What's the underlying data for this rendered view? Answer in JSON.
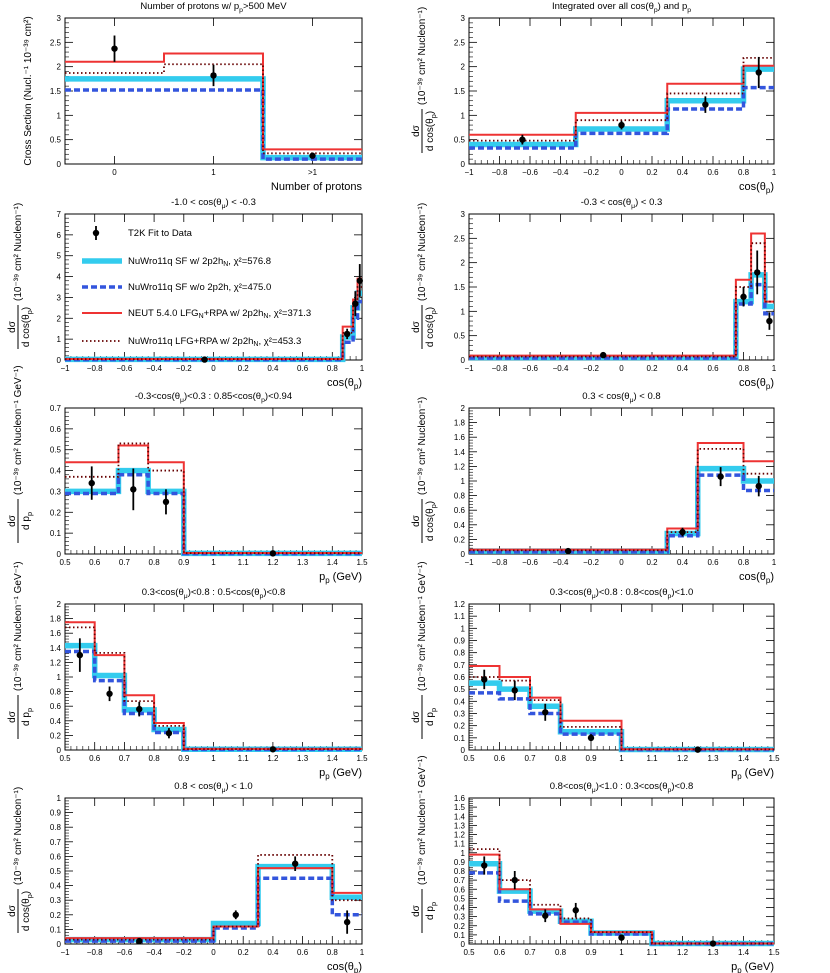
{
  "colors": {
    "sf": "#33ccee",
    "nosf": "#3355dd",
    "neut": "#ee3333",
    "lfg": "#660000",
    "data": "#000000"
  },
  "legend": {
    "data": "T2K Fit to Data",
    "sf": "NuWro11q SF w/ 2p2h",
    "sf_sub": "N",
    "sf_chi": ", χ²=576.8",
    "nosf": "NuWro11q SF w/o 2p2h, χ²=475.0",
    "neut": "NEUT 5.4.0 LFG",
    "neut_sub1": "N",
    "neut_mid": "+RPA  w/ 2p2h",
    "neut_sub2": "N",
    "neut_chi": ", χ²=371.3",
    "lfg": "NuWro11q LFG+RPA w/ 2p2h",
    "lfg_sub": "N",
    "lfg_chi": ", χ²=453.3"
  },
  "chart_data": [
    {
      "type": "step",
      "title": "Number of protons w/ p_p>500 MeV",
      "xlabel": "Number of protons",
      "ylabel": "Cross Section (Nucl.⁻¹ 10⁻³⁹ cm²)",
      "ylabel_kind": "plain",
      "xlim": [
        -0.5,
        2.5
      ],
      "ylim": [
        0,
        3
      ],
      "yticks": [
        0,
        0.5,
        1,
        1.5,
        2,
        2.5,
        3
      ],
      "xticks": [
        0,
        1,
        2
      ],
      "xticklabels": [
        "0",
        "1",
        ">1"
      ],
      "xticklabel_style": "small",
      "edges": [
        -0.5,
        0.5,
        1.5,
        2.5
      ],
      "series": {
        "sf": [
          1.75,
          1.75,
          0.13
        ],
        "nosf": [
          1.52,
          1.52,
          0.1
        ],
        "neut": [
          2.1,
          2.27,
          0.3
        ],
        "lfg": [
          1.87,
          2.05,
          0.22
        ]
      },
      "data": {
        "x": [
          0,
          1,
          2
        ],
        "y": [
          2.37,
          1.82,
          0.17
        ],
        "err": [
          0.27,
          0.22,
          0.05
        ]
      }
    },
    {
      "type": "step",
      "title": "Integrated over all cos(θ_p) and p_p",
      "xlabel": "cos(θ_p)",
      "ylabel": "(10⁻³⁹ cm² Nucleon⁻¹)",
      "ylabel_kind": "frac_cos",
      "xlim": [
        -1,
        1
      ],
      "ylim": [
        0,
        3
      ],
      "yticks": [
        0,
        0.5,
        1,
        1.5,
        2,
        2.5,
        3
      ],
      "xticks": [
        -1,
        -0.8,
        -0.6,
        -0.4,
        -0.2,
        0,
        0.2,
        0.4,
        0.6,
        0.8,
        1
      ],
      "edges": [
        -1,
        -0.3,
        0.3,
        0.8,
        1
      ],
      "series": {
        "sf": [
          0.4,
          0.72,
          1.3,
          1.95
        ],
        "nosf": [
          0.33,
          0.63,
          1.13,
          1.57
        ],
        "neut": [
          0.6,
          1.05,
          1.65,
          2.02
        ],
        "lfg": [
          0.48,
          0.9,
          1.45,
          2.18
        ]
      },
      "data": {
        "x": [
          -0.65,
          0,
          0.55,
          0.9
        ],
        "y": [
          0.5,
          0.8,
          1.22,
          1.88
        ],
        "err": [
          0.1,
          0.09,
          0.17,
          0.32
        ]
      }
    },
    {
      "type": "step",
      "title": "-1.0 < cos(θ_μ) < -0.3",
      "xlabel": "cos(θ_p)",
      "ylabel": "(10⁻³⁹ cm² Nucleon⁻¹)",
      "ylabel_kind": "frac_cos",
      "xlim": [
        -1,
        1
      ],
      "ylim": [
        0,
        7
      ],
      "yticks": [
        0,
        1,
        2,
        3,
        4,
        5,
        6,
        7
      ],
      "xticks": [
        -1,
        -0.8,
        -0.6,
        -0.4,
        -0.2,
        0,
        0.2,
        0.4,
        0.6,
        0.8,
        1
      ],
      "edges": [
        -1,
        0.87,
        0.94,
        0.97,
        1
      ],
      "series": {
        "sf": [
          0.03,
          1.1,
          2.5,
          3.2
        ],
        "nosf": [
          0.02,
          0.85,
          2.0,
          2.8
        ],
        "neut": [
          0.05,
          1.6,
          2.9,
          3.9
        ],
        "lfg": [
          0.04,
          1.3,
          2.7,
          3.5
        ]
      },
      "data": {
        "x": [
          -0.06,
          0.9,
          0.955,
          0.985
        ],
        "y": [
          0.02,
          1.25,
          2.7,
          3.8
        ],
        "err": [
          0.03,
          0.25,
          0.6,
          0.8
        ]
      }
    },
    {
      "type": "step",
      "title": "-0.3 < cos(θ_μ) < 0.3",
      "xlabel": "cos(θ_p)",
      "ylabel": "(10⁻³⁹ cm² Nucleon⁻¹)",
      "ylabel_kind": "frac_cos",
      "xlim": [
        -1,
        1
      ],
      "ylim": [
        0,
        3
      ],
      "yticks": [
        0,
        0.5,
        1,
        1.5,
        2,
        2.5,
        3
      ],
      "xticks": [
        -1,
        -0.8,
        -0.6,
        -0.4,
        -0.2,
        0,
        0.2,
        0.4,
        0.6,
        0.8,
        1
      ],
      "edges": [
        -1,
        0.75,
        0.85,
        0.94,
        1
      ],
      "series": {
        "sf": [
          0.05,
          1.2,
          1.75,
          1.1
        ],
        "nosf": [
          0.04,
          1.15,
          1.55,
          0.95
        ],
        "neut": [
          0.09,
          1.65,
          2.6,
          1.2
        ],
        "lfg": [
          0.07,
          1.5,
          2.4,
          1.2
        ]
      },
      "data": {
        "x": [
          -0.12,
          0.8,
          0.89,
          0.97
        ],
        "y": [
          0.1,
          1.3,
          1.8,
          0.8
        ],
        "err": [
          0.03,
          0.2,
          0.45,
          0.18
        ]
      }
    },
    {
      "type": "step",
      "title": "-0.3<cos(θ_μ)<0.3 : 0.85<cos(θ_p)<0.94",
      "xlabel": "p_p (GeV)",
      "ylabel": "(10⁻³⁹ cm² Nucleon⁻¹ GeV⁻¹)",
      "ylabel_kind": "frac_p",
      "xlim": [
        0.5,
        1.5
      ],
      "ylim": [
        0,
        0.7
      ],
      "yticks": [
        0,
        0.1,
        0.2,
        0.3,
        0.4,
        0.5,
        0.6,
        0.7
      ],
      "xticks": [
        0.5,
        0.6,
        0.7,
        0.8,
        0.9,
        1,
        1.1,
        1.2,
        1.3,
        1.4,
        1.5
      ],
      "edges": [
        0.5,
        0.68,
        0.78,
        0.9,
        1.5
      ],
      "series": {
        "sf": [
          0.3,
          0.4,
          0.3,
          0.003
        ],
        "nosf": [
          0.29,
          0.38,
          0.29,
          0.002
        ],
        "neut": [
          0.44,
          0.52,
          0.44,
          0.005
        ],
        "lfg": [
          0.37,
          0.53,
          0.4,
          0.004
        ]
      },
      "data": {
        "x": [
          0.59,
          0.73,
          0.84,
          1.2
        ],
        "y": [
          0.34,
          0.31,
          0.25,
          0.003
        ],
        "err": [
          0.08,
          0.1,
          0.06,
          0.005
        ]
      }
    },
    {
      "type": "step",
      "title": "0.3 < cos(θ_μ) < 0.8",
      "xlabel": "cos(θ_p)",
      "ylabel": "(10⁻³⁹ cm² Nucleon⁻¹)",
      "ylabel_kind": "frac_cos",
      "xlim": [
        -1,
        1
      ],
      "ylim": [
        0,
        2
      ],
      "yticks": [
        0,
        0.2,
        0.4,
        0.6,
        0.8,
        1,
        1.2,
        1.4,
        1.6,
        1.8,
        2
      ],
      "xticks": [
        -1,
        -0.8,
        -0.6,
        -0.4,
        -0.2,
        0,
        0.2,
        0.4,
        0.6,
        0.8,
        1
      ],
      "edges": [
        -1,
        0.3,
        0.5,
        0.8,
        1
      ],
      "series": {
        "sf": [
          0.04,
          0.28,
          1.17,
          1.0
        ],
        "nosf": [
          0.03,
          0.25,
          1.08,
          0.87
        ],
        "neut": [
          0.06,
          0.35,
          1.52,
          1.27
        ],
        "lfg": [
          0.05,
          0.3,
          1.44,
          1.1
        ]
      },
      "data": {
        "x": [
          -0.35,
          0.4,
          0.65,
          0.9
        ],
        "y": [
          0.04,
          0.3,
          1.06,
          0.93
        ],
        "err": [
          0.01,
          0.06,
          0.13,
          0.14
        ]
      }
    },
    {
      "type": "step",
      "title": "0.3<cos(θ_μ)<0.8 : 0.5<cos(θ_p)<0.8",
      "xlabel": "p_p (GeV)",
      "ylabel": "(10⁻³⁹ cm² Nucleon⁻¹ GeV⁻¹)",
      "ylabel_kind": "frac_p",
      "xlim": [
        0.5,
        1.5
      ],
      "ylim": [
        0,
        2
      ],
      "yticks": [
        0,
        0.2,
        0.4,
        0.6,
        0.8,
        1,
        1.2,
        1.4,
        1.6,
        1.8,
        2
      ],
      "xticks": [
        0.5,
        0.6,
        0.7,
        0.8,
        0.9,
        1,
        1.1,
        1.2,
        1.3,
        1.4,
        1.5
      ],
      "edges": [
        0.5,
        0.6,
        0.7,
        0.8,
        0.9,
        1.5
      ],
      "series": {
        "sf": [
          1.43,
          1.02,
          0.55,
          0.28,
          0.01
        ],
        "nosf": [
          1.35,
          0.95,
          0.5,
          0.24,
          0.008
        ],
        "neut": [
          1.75,
          1.3,
          0.75,
          0.37,
          0.015
        ],
        "lfg": [
          1.68,
          1.33,
          0.67,
          0.33,
          0.012
        ]
      },
      "data": {
        "x": [
          0.55,
          0.65,
          0.75,
          0.85,
          1.2
        ],
        "y": [
          1.3,
          0.77,
          0.56,
          0.23,
          0.01
        ],
        "err": [
          0.23,
          0.1,
          0.1,
          0.07,
          0.01
        ]
      }
    },
    {
      "type": "step",
      "title": "0.3<cos(θ_μ)<0.8 : 0.8<cos(θ_p)<1.0",
      "xlabel": "p_p (GeV)",
      "ylabel": "(10⁻³⁹ cm² Nucleon⁻¹ GeV⁻¹)",
      "ylabel_kind": "frac_p",
      "xlim": [
        0.5,
        1.5
      ],
      "ylim": [
        0,
        1.2
      ],
      "yticks": [
        0,
        0.1,
        0.2,
        0.3,
        0.4,
        0.5,
        0.6,
        0.7,
        0.8,
        0.9,
        1,
        1.1,
        1.2
      ],
      "xticks": [
        0.5,
        0.6,
        0.7,
        0.8,
        0.9,
        1,
        1.1,
        1.2,
        1.3,
        1.4,
        1.5
      ],
      "edges": [
        0.5,
        0.6,
        0.7,
        0.8,
        1.0,
        1.5
      ],
      "series": {
        "sf": [
          0.55,
          0.5,
          0.36,
          0.15,
          0.004
        ],
        "nosf": [
          0.47,
          0.42,
          0.3,
          0.13,
          0.003
        ],
        "neut": [
          0.69,
          0.6,
          0.43,
          0.24,
          0.006
        ],
        "lfg": [
          0.6,
          0.57,
          0.41,
          0.19,
          0.005
        ]
      },
      "data": {
        "x": [
          0.55,
          0.65,
          0.75,
          0.9,
          1.25
        ],
        "y": [
          0.58,
          0.49,
          0.31,
          0.1,
          0.003
        ],
        "err": [
          0.08,
          0.08,
          0.07,
          0.03,
          0.005
        ]
      }
    },
    {
      "type": "step",
      "title": "0.8 < cos(θ_μ) < 1.0",
      "xlabel": "cos(θ_p)",
      "ylabel": "(10⁻³⁹ cm² Nucleon⁻¹)",
      "ylabel_kind": "frac_cos",
      "xlim": [
        -1,
        1
      ],
      "ylim": [
        0,
        1
      ],
      "yticks": [
        0,
        0.1,
        0.2,
        0.3,
        0.4,
        0.5,
        0.6,
        0.7,
        0.8,
        0.9,
        1
      ],
      "xticks": [
        -1,
        -0.8,
        -0.6,
        -0.4,
        -0.2,
        0,
        0.2,
        0.4,
        0.6,
        0.8,
        1
      ],
      "edges": [
        -1,
        0,
        0.3,
        0.8,
        1
      ],
      "series": {
        "sf": [
          0.03,
          0.14,
          0.53,
          0.32
        ],
        "nosf": [
          0.02,
          0.11,
          0.45,
          0.2
        ],
        "neut": [
          0.04,
          0.12,
          0.52,
          0.35
        ],
        "lfg": [
          0.03,
          0.12,
          0.61,
          0.3
        ]
      },
      "data": {
        "x": [
          -0.5,
          0.15,
          0.55,
          0.9
        ],
        "y": [
          0.02,
          0.2,
          0.55,
          0.15
        ],
        "err": [
          0.01,
          0.03,
          0.05,
          0.08
        ]
      }
    },
    {
      "type": "step",
      "title": "0.8<cos(θ_μ)<1.0 : 0.3<cos(θ_p)<0.8",
      "xlabel": "p_p (GeV)",
      "ylabel": "(10⁻³⁹ cm² Nucleon⁻¹ GeV⁻¹)",
      "ylabel_kind": "frac_p",
      "xlim": [
        0.5,
        1.5
      ],
      "ylim": [
        0,
        1.6
      ],
      "yticks": [
        0,
        0.1,
        0.2,
        0.3,
        0.4,
        0.5,
        0.6,
        0.7,
        0.8,
        0.9,
        1,
        1.1,
        1.2,
        1.3,
        1.4,
        1.5,
        1.6
      ],
      "xticks": [
        0.5,
        0.6,
        0.7,
        0.8,
        0.9,
        1,
        1.1,
        1.2,
        1.3,
        1.4,
        1.5
      ],
      "edges": [
        0.5,
        0.6,
        0.7,
        0.8,
        0.9,
        1.1,
        1.5
      ],
      "series": {
        "sf": [
          0.88,
          0.58,
          0.36,
          0.25,
          0.12,
          0.005
        ],
        "nosf": [
          0.78,
          0.47,
          0.33,
          0.24,
          0.11,
          0.004
        ],
        "neut": [
          0.98,
          0.6,
          0.38,
          0.22,
          0.13,
          0.006
        ],
        "lfg": [
          1.04,
          0.7,
          0.43,
          0.28,
          0.13,
          0.005
        ]
      },
      "data": {
        "x": [
          0.55,
          0.65,
          0.75,
          0.85,
          1.0,
          1.3
        ],
        "y": [
          0.86,
          0.7,
          0.31,
          0.37,
          0.07,
          0.005
        ],
        "err": [
          0.1,
          0.1,
          0.07,
          0.08,
          0.02,
          0.005
        ]
      }
    }
  ]
}
